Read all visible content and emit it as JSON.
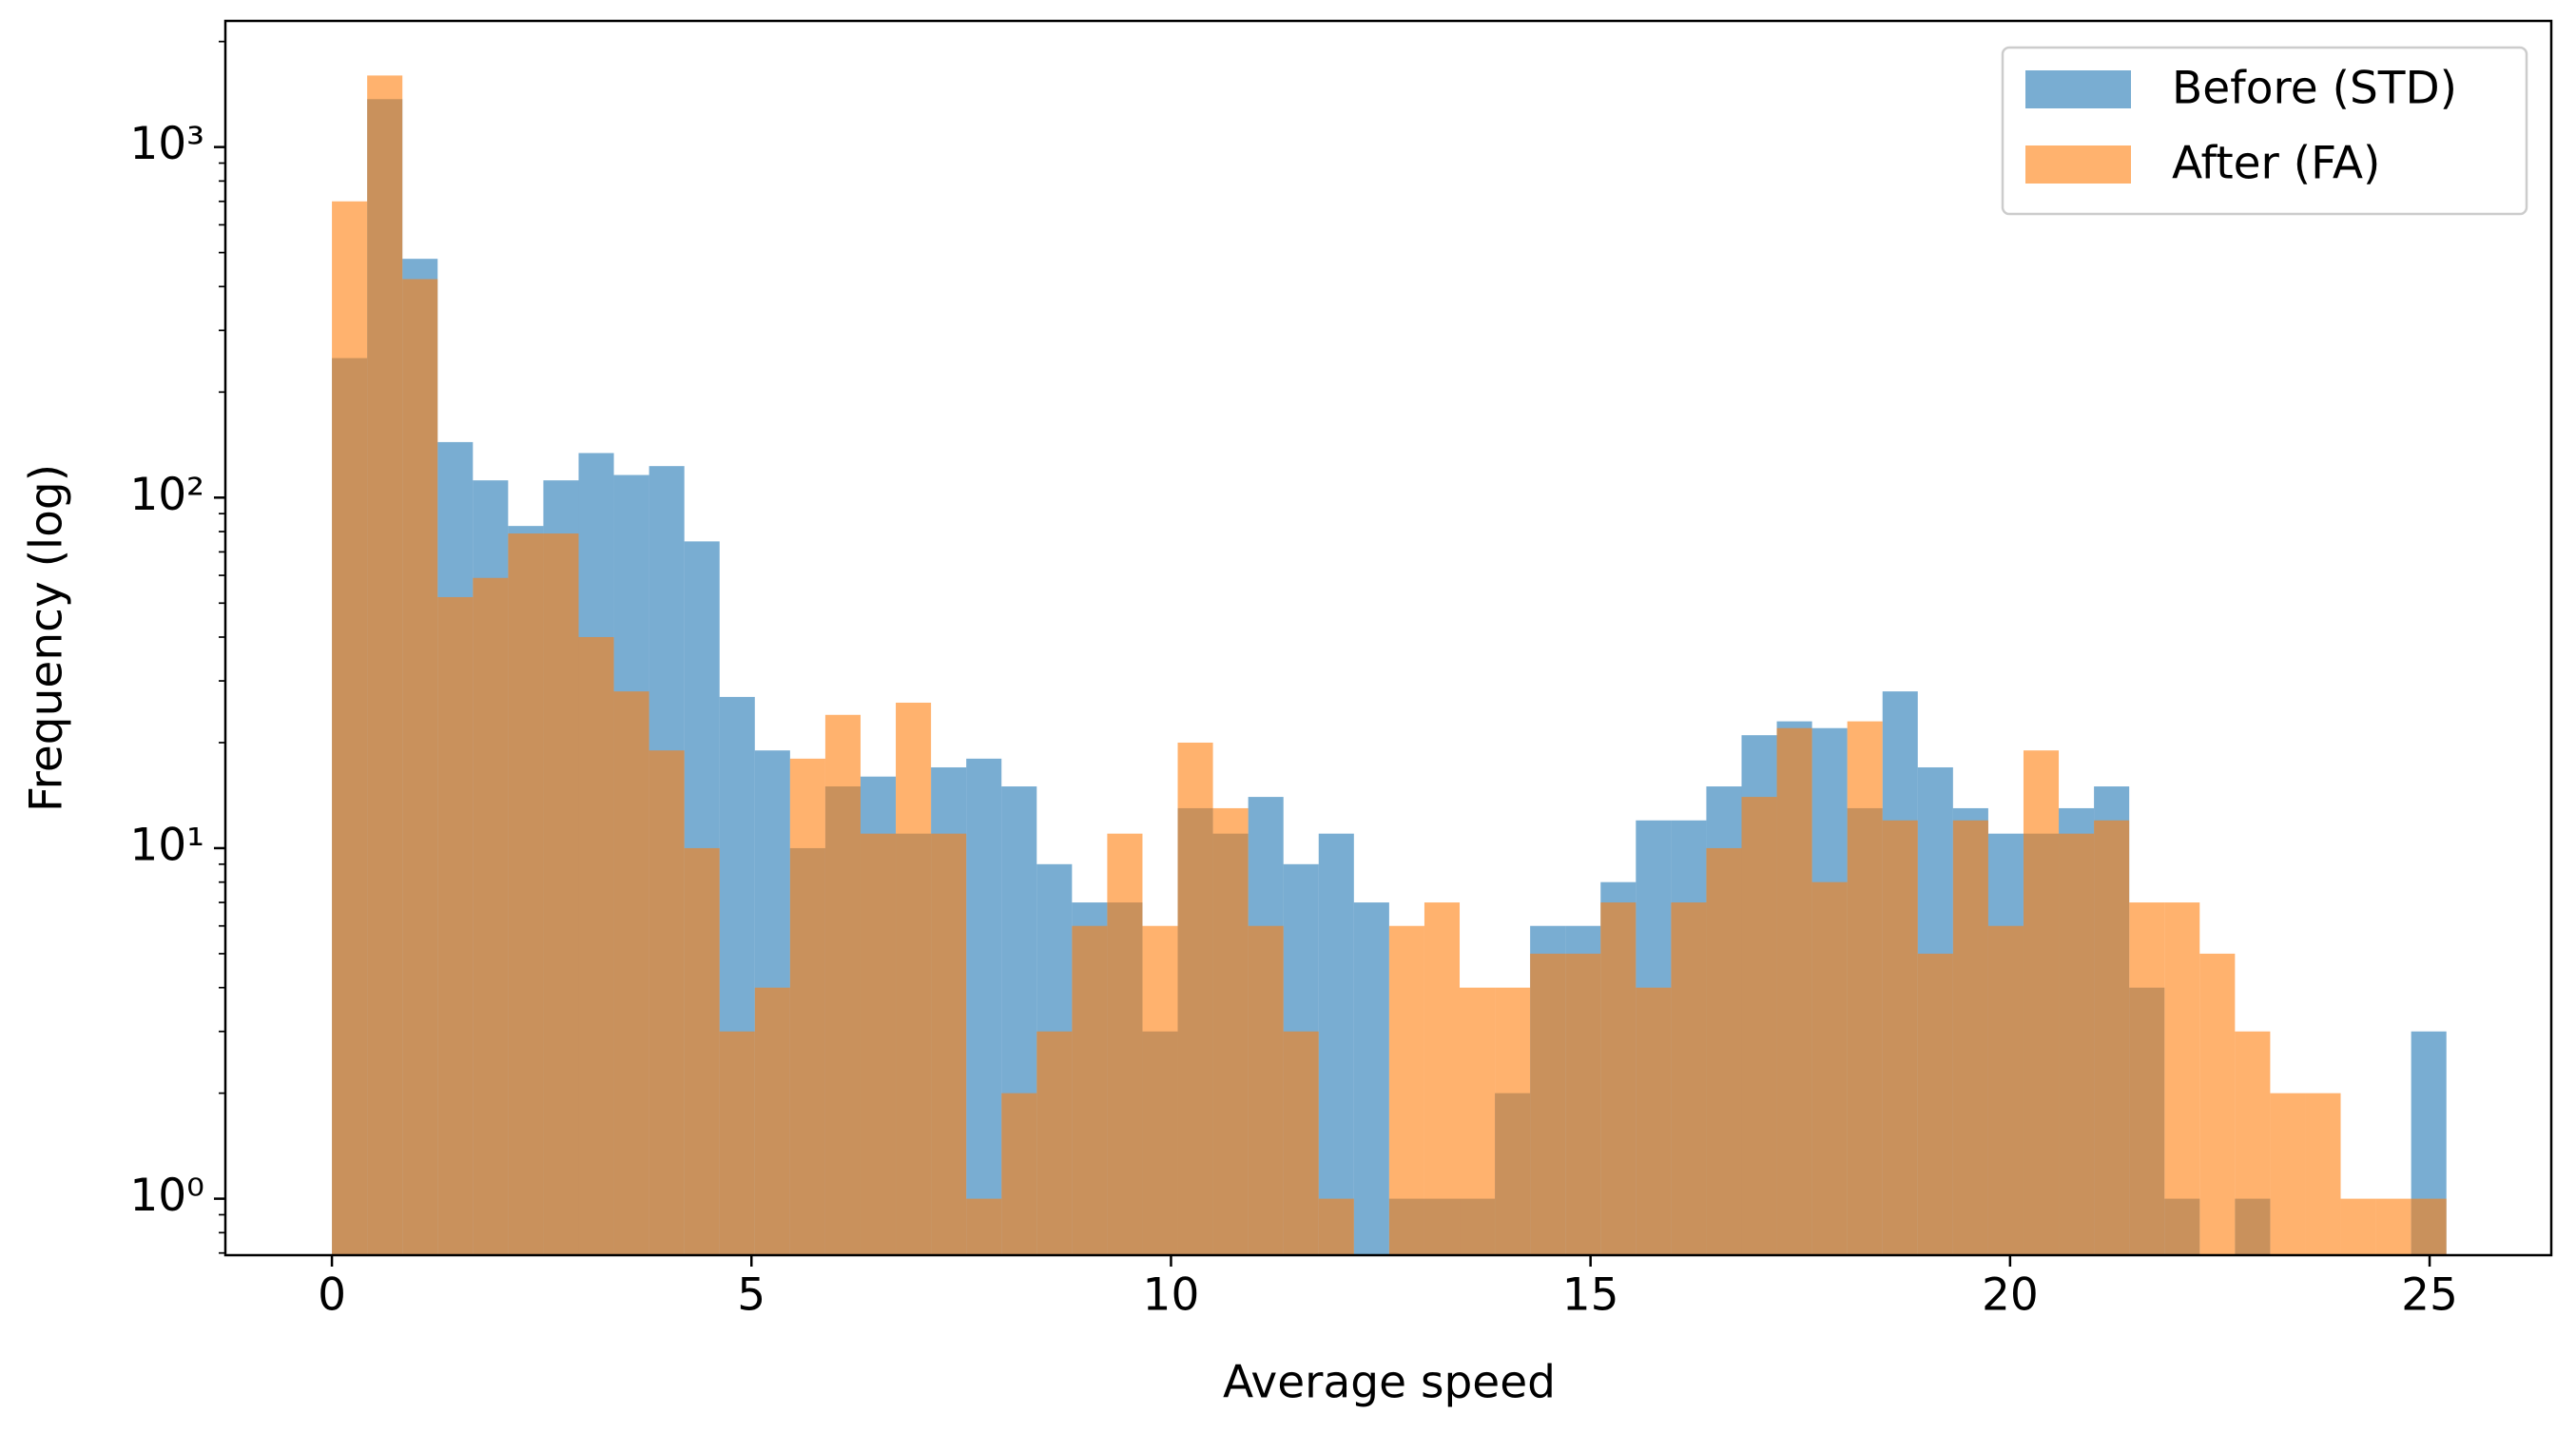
{
  "chart_data": {
    "type": "histogram",
    "xlabel": "Average speed",
    "ylabel": "Frequency (log)",
    "bins": [
      0,
      0.42,
      0.84,
      1.26,
      1.68,
      2.1,
      2.52,
      2.94,
      3.36,
      3.78,
      4.2,
      4.62,
      5.04,
      5.46,
      5.88,
      6.3,
      6.72,
      7.14,
      7.56,
      7.98,
      8.4,
      8.82,
      9.24,
      9.66,
      10.08,
      10.5,
      10.92,
      11.34,
      11.76,
      12.18,
      12.6,
      13.02,
      13.44,
      13.86,
      14.28,
      14.7,
      15.12,
      15.54,
      15.96,
      16.38,
      16.8,
      17.22,
      17.64,
      18.06,
      18.48,
      18.9,
      19.32,
      19.74,
      20.16,
      20.58,
      21,
      21.42,
      21.84,
      22.26,
      22.68,
      23.1,
      23.52,
      23.94,
      24.36,
      24.78,
      25.2
    ],
    "series": [
      {
        "name": "Before (STD)",
        "color": "#1f77b4",
        "values": [
          250,
          1370,
          480,
          144,
          112,
          83,
          112,
          134,
          116,
          123,
          75,
          27,
          19,
          10,
          15,
          16,
          11,
          17,
          18,
          15,
          9,
          7,
          7,
          3,
          13,
          11,
          14,
          9,
          11,
          7,
          1,
          1,
          1,
          2,
          6,
          6,
          8,
          12,
          12,
          15,
          21,
          23,
          22,
          13,
          28,
          17,
          13,
          11,
          11,
          13,
          15,
          4,
          1,
          0,
          1,
          0,
          0,
          0,
          0,
          3
        ]
      },
      {
        "name": "After (FA)",
        "color": "#ff7f0e",
        "values": [
          700,
          1600,
          420,
          52,
          59,
          79,
          79,
          40,
          28,
          19,
          10,
          3,
          4,
          18,
          24,
          11,
          26,
          11,
          1,
          2,
          3,
          6,
          11,
          6,
          20,
          13,
          6,
          3,
          1,
          0,
          6,
          7,
          4,
          4,
          5,
          5,
          7,
          4,
          7,
          10,
          14,
          22,
          8,
          23,
          12,
          5,
          12,
          6,
          19,
          11,
          12,
          7,
          7,
          5,
          3,
          2,
          2,
          1,
          1,
          1
        ]
      }
    ],
    "opacity": 0.6,
    "xlim": [
      -1.27,
      26.45
    ],
    "xticks": [
      0,
      5,
      10,
      15,
      20,
      25
    ],
    "ylim": [
      0.69,
      2290
    ],
    "log_y": true,
    "yticks": [
      {
        "value": 1,
        "label": "10⁰"
      },
      {
        "value": 10,
        "label": "10¹"
      },
      {
        "value": 100,
        "label": "10²"
      },
      {
        "value": 1000,
        "label": "10³"
      }
    ],
    "yminorticks": [
      0.7,
      0.8,
      0.9,
      2,
      3,
      4,
      5,
      6,
      7,
      8,
      9,
      20,
      30,
      40,
      50,
      60,
      70,
      80,
      90,
      200,
      300,
      400,
      500,
      600,
      700,
      800,
      900,
      2000
    ],
    "legend": "upper right"
  }
}
